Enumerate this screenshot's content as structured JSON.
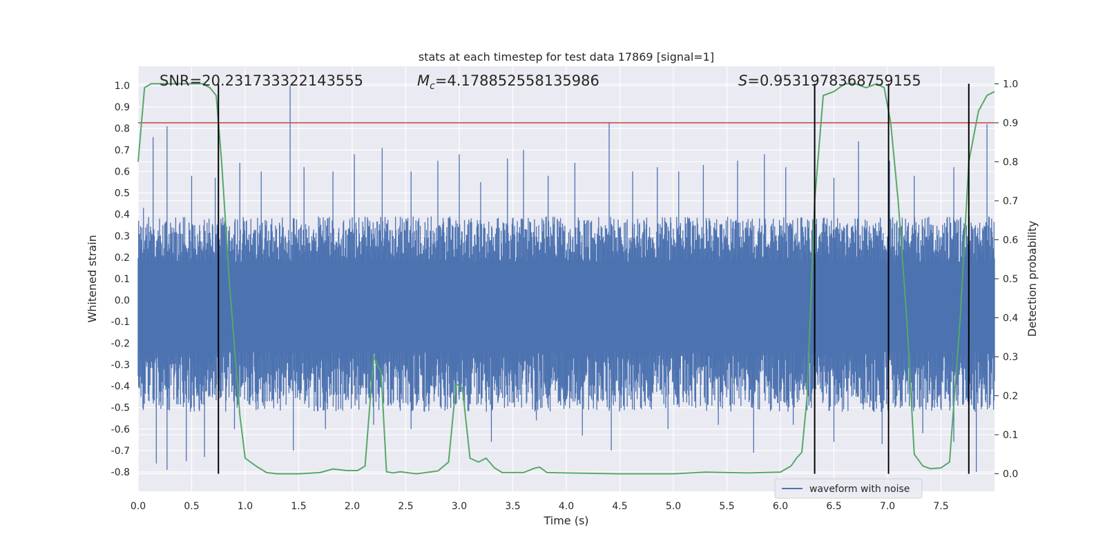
{
  "chart_data": {
    "type": "line",
    "title": "stats at each timestep for test data 17869 [signal=1]",
    "xlabel": "Time (s)",
    "ylabel_left": "Whitened strain",
    "ylabel_right": "Detection probability",
    "xlim": [
      0,
      8.0
    ],
    "ylim_left": [
      -0.89,
      1.09
    ],
    "ylim_right": [
      -0.045,
      1.045
    ],
    "x_ticks": [
      "0.0",
      "0.5",
      "1.0",
      "1.5",
      "2.0",
      "2.5",
      "3.0",
      "3.5",
      "4.0",
      "4.5",
      "5.0",
      "5.5",
      "6.0",
      "6.5",
      "7.0",
      "7.5"
    ],
    "y_ticks_left": [
      "-0.8",
      "-0.7",
      "-0.6",
      "-0.5",
      "-0.4",
      "-0.3",
      "-0.2",
      "-0.1",
      "0.0",
      "0.1",
      "0.2",
      "0.3",
      "0.4",
      "0.5",
      "0.6",
      "0.7",
      "0.8",
      "0.9",
      "1.0"
    ],
    "y_ticks_right": [
      "0.0",
      "0.1",
      "0.2",
      "0.3",
      "0.4",
      "0.5",
      "0.6",
      "0.7",
      "0.8",
      "0.9",
      "1.0"
    ],
    "grid": true,
    "legend_position": "lower-right",
    "annotations": {
      "snr": "SNR=20.231733322143555",
      "mc_symbol": "M",
      "mc_sub": "c",
      "mc_value": "=4.178852558135986",
      "s_symbol": "S",
      "s_value": "=0.9531978368759155"
    },
    "threshold_line": {
      "axis": "right",
      "y": 0.9,
      "color": "#c44e52"
    },
    "event_lines": [
      0.75,
      6.32,
      7.01,
      7.76
    ],
    "series": [
      {
        "name": "waveform with noise",
        "axis": "left",
        "color": "#4c72b0",
        "style": "dense_noise",
        "envelope_upper": 0.3,
        "envelope_lower": -0.4,
        "peaks": [
          [
            0.05,
            0.43
          ],
          [
            0.14,
            0.76
          ],
          [
            0.27,
            0.81
          ],
          [
            0.5,
            0.58
          ],
          [
            0.72,
            0.57
          ],
          [
            0.95,
            0.64
          ],
          [
            1.15,
            0.6
          ],
          [
            1.42,
            1.0
          ],
          [
            1.55,
            0.62
          ],
          [
            1.82,
            0.6
          ],
          [
            2.02,
            0.68
          ],
          [
            2.28,
            0.71
          ],
          [
            2.55,
            0.6
          ],
          [
            2.8,
            0.65
          ],
          [
            3.0,
            0.68
          ],
          [
            3.2,
            0.55
          ],
          [
            3.45,
            0.66
          ],
          [
            3.6,
            0.7
          ],
          [
            3.83,
            0.58
          ],
          [
            4.08,
            0.64
          ],
          [
            4.4,
            0.83
          ],
          [
            4.62,
            0.6
          ],
          [
            4.85,
            0.62
          ],
          [
            5.05,
            0.6
          ],
          [
            5.28,
            0.63
          ],
          [
            5.6,
            0.65
          ],
          [
            5.85,
            0.68
          ],
          [
            6.05,
            0.62
          ],
          [
            6.5,
            0.57
          ],
          [
            6.73,
            0.74
          ],
          [
            7.02,
            0.65
          ],
          [
            7.25,
            0.58
          ],
          [
            7.62,
            0.62
          ],
          [
            7.93,
            0.82
          ]
        ],
        "troughs": [
          [
            0.17,
            -0.76
          ],
          [
            0.27,
            -0.79
          ],
          [
            0.45,
            -0.75
          ],
          [
            0.62,
            -0.73
          ],
          [
            0.9,
            -0.6
          ],
          [
            1.45,
            -0.7
          ],
          [
            1.75,
            -0.6
          ],
          [
            2.2,
            -0.58
          ],
          [
            2.55,
            -0.6
          ],
          [
            3.3,
            -0.66
          ],
          [
            3.72,
            -0.56
          ],
          [
            4.15,
            -0.63
          ],
          [
            4.42,
            -0.7
          ],
          [
            4.95,
            -0.6
          ],
          [
            5.42,
            -0.58
          ],
          [
            5.75,
            -0.71
          ],
          [
            6.12,
            -0.58
          ],
          [
            6.5,
            -0.66
          ],
          [
            6.95,
            -0.67
          ],
          [
            7.33,
            -0.62
          ],
          [
            7.62,
            -0.66
          ],
          [
            7.83,
            -0.8
          ]
        ]
      },
      {
        "name": "detection probability",
        "axis": "right",
        "color": "#55a868",
        "x": [
          0.0,
          0.06,
          0.12,
          0.2,
          0.3,
          0.4,
          0.5,
          0.6,
          0.67,
          0.73,
          0.78,
          0.85,
          0.95,
          1.0,
          1.1,
          1.2,
          1.3,
          1.5,
          1.7,
          1.82,
          1.95,
          2.05,
          2.12,
          2.2,
          2.27,
          2.32,
          2.38,
          2.45,
          2.6,
          2.8,
          2.9,
          2.97,
          3.03,
          3.1,
          3.18,
          3.25,
          3.33,
          3.4,
          3.6,
          3.7,
          3.75,
          3.82,
          4.0,
          4.5,
          5.0,
          5.3,
          5.5,
          5.7,
          6.0,
          6.1,
          6.15,
          6.2,
          6.25,
          6.32,
          6.4,
          6.5,
          6.6,
          6.7,
          6.8,
          6.9,
          6.97,
          7.03,
          7.1,
          7.18,
          7.25,
          7.33,
          7.4,
          7.5,
          7.58,
          7.68,
          7.76,
          7.85,
          7.93,
          8.0
        ],
        "y": [
          0.8,
          0.99,
          1.0,
          1.0,
          1.0,
          1.0,
          1.0,
          1.0,
          0.99,
          0.97,
          0.8,
          0.5,
          0.15,
          0.04,
          0.02,
          0.003,
          0.0,
          0.0,
          0.003,
          0.012,
          0.008,
          0.008,
          0.02,
          0.3,
          0.26,
          0.005,
          0.002,
          0.005,
          0.0,
          0.007,
          0.03,
          0.23,
          0.22,
          0.04,
          0.03,
          0.04,
          0.015,
          0.003,
          0.003,
          0.014,
          0.017,
          0.003,
          0.002,
          0.0,
          0.0,
          0.004,
          0.003,
          0.002,
          0.004,
          0.02,
          0.04,
          0.055,
          0.2,
          0.7,
          0.97,
          0.98,
          1.0,
          1.0,
          0.99,
          1.0,
          0.99,
          0.9,
          0.7,
          0.4,
          0.05,
          0.02,
          0.013,
          0.015,
          0.03,
          0.4,
          0.8,
          0.93,
          0.97,
          0.98
        ]
      }
    ]
  }
}
